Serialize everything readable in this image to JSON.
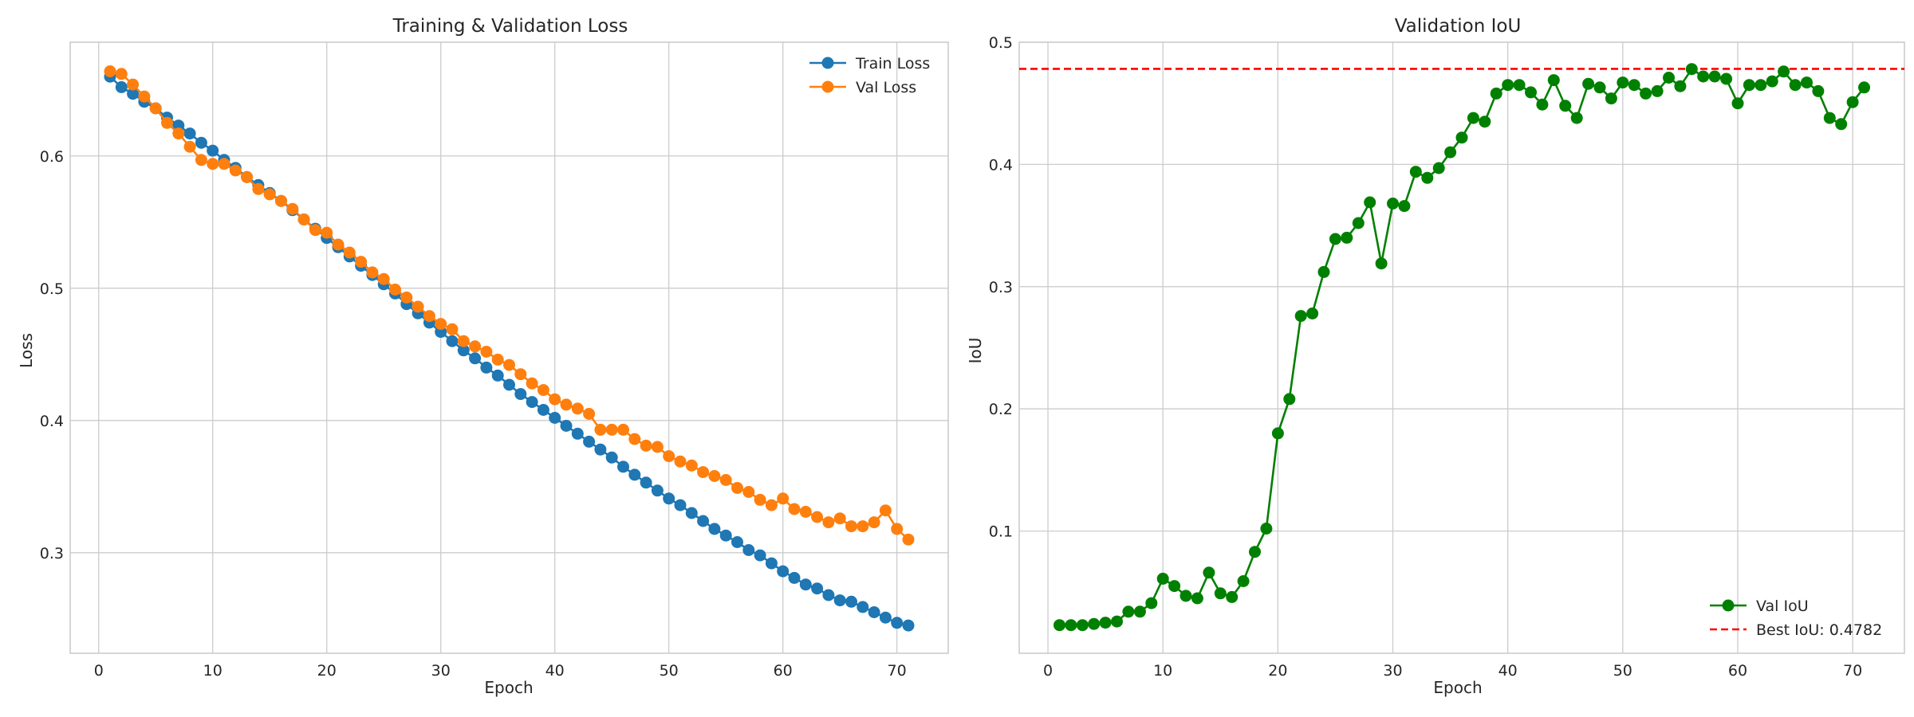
{
  "chart_data": [
    {
      "type": "line",
      "title": "Training & Validation Loss",
      "xlabel": "Epoch",
      "ylabel": "Loss",
      "xlim": [
        -2.5,
        74.5
      ],
      "ylim": [
        0.224,
        0.686
      ],
      "xticks": [
        0,
        10,
        20,
        30,
        40,
        50,
        60,
        70
      ],
      "xtick_labels": [
        "0",
        "10",
        "20",
        "30",
        "40",
        "50",
        "60",
        "70"
      ],
      "yticks": [
        0.3,
        0.4,
        0.5,
        0.6
      ],
      "ytick_labels": [
        "0.3",
        "0.4",
        "0.5",
        "0.6"
      ],
      "grid": true,
      "legend": "top-right",
      "x": [
        1,
        2,
        3,
        4,
        5,
        6,
        7,
        8,
        9,
        10,
        11,
        12,
        13,
        14,
        15,
        16,
        17,
        18,
        19,
        20,
        21,
        22,
        23,
        24,
        25,
        26,
        27,
        28,
        29,
        30,
        31,
        32,
        33,
        34,
        35,
        36,
        37,
        38,
        39,
        40,
        41,
        42,
        43,
        44,
        45,
        46,
        47,
        48,
        49,
        50,
        51,
        52,
        53,
        54,
        55,
        56,
        57,
        58,
        59,
        60,
        61,
        62,
        63,
        64,
        65,
        66,
        67,
        68,
        69,
        70,
        71
      ],
      "series": [
        {
          "name": "Train Loss",
          "color": "#1f77b4",
          "values": [
            0.66,
            0.652,
            0.647,
            0.641,
            0.636,
            0.629,
            0.623,
            0.617,
            0.61,
            0.604,
            0.597,
            0.591,
            0.584,
            0.578,
            0.572,
            0.566,
            0.559,
            0.552,
            0.545,
            0.538,
            0.531,
            0.524,
            0.517,
            0.51,
            0.503,
            0.496,
            0.488,
            0.481,
            0.474,
            0.467,
            0.46,
            0.453,
            0.447,
            0.44,
            0.434,
            0.427,
            0.42,
            0.414,
            0.408,
            0.402,
            0.396,
            0.39,
            0.384,
            0.378,
            0.372,
            0.365,
            0.359,
            0.353,
            0.347,
            0.341,
            0.336,
            0.33,
            0.324,
            0.318,
            0.313,
            0.308,
            0.302,
            0.298,
            0.292,
            0.286,
            0.281,
            0.276,
            0.273,
            0.268,
            0.264,
            0.263,
            0.259,
            0.255,
            0.251,
            0.247,
            0.245
          ]
        },
        {
          "name": "Val Loss",
          "color": "#ff7f0e",
          "values": [
            0.664,
            0.662,
            0.654,
            0.645,
            0.636,
            0.625,
            0.617,
            0.607,
            0.597,
            0.594,
            0.594,
            0.589,
            0.584,
            0.575,
            0.571,
            0.566,
            0.56,
            0.552,
            0.544,
            0.542,
            0.533,
            0.527,
            0.52,
            0.512,
            0.507,
            0.499,
            0.493,
            0.486,
            0.479,
            0.473,
            0.469,
            0.46,
            0.456,
            0.452,
            0.446,
            0.442,
            0.435,
            0.428,
            0.423,
            0.416,
            0.412,
            0.409,
            0.405,
            0.393,
            0.393,
            0.393,
            0.386,
            0.381,
            0.38,
            0.373,
            0.369,
            0.366,
            0.361,
            0.358,
            0.355,
            0.349,
            0.346,
            0.34,
            0.336,
            0.341,
            0.333,
            0.331,
            0.327,
            0.323,
            0.326,
            0.32,
            0.32,
            0.323,
            0.332,
            0.318,
            0.31
          ]
        }
      ]
    },
    {
      "type": "line",
      "title": "Validation IoU",
      "xlabel": "Epoch",
      "ylabel": "IoU",
      "xlim": [
        -2.5,
        74.5
      ],
      "ylim": [
        0.0,
        0.5
      ],
      "xticks": [
        0,
        10,
        20,
        30,
        40,
        50,
        60,
        70
      ],
      "xtick_labels": [
        "0",
        "10",
        "20",
        "30",
        "40",
        "50",
        "60",
        "70"
      ],
      "yticks": [
        0.1,
        0.2,
        0.3,
        0.4,
        0.5
      ],
      "ytick_labels": [
        "0.1",
        "0.2",
        "0.3",
        "0.4",
        "0.5"
      ],
      "grid": true,
      "legend": "bottom-right",
      "x": [
        1,
        2,
        3,
        4,
        5,
        6,
        7,
        8,
        9,
        10,
        11,
        12,
        13,
        14,
        15,
        16,
        17,
        18,
        19,
        20,
        21,
        22,
        23,
        24,
        25,
        26,
        27,
        28,
        29,
        30,
        31,
        32,
        33,
        34,
        35,
        36,
        37,
        38,
        39,
        40,
        41,
        42,
        43,
        44,
        45,
        46,
        47,
        48,
        49,
        50,
        51,
        52,
        53,
        54,
        55,
        56,
        57,
        58,
        59,
        60,
        61,
        62,
        63,
        64,
        65,
        66,
        67,
        68,
        69,
        70,
        71
      ],
      "series": [
        {
          "name": "Val IoU",
          "color": "#008000",
          "values": [
            0.023,
            0.023,
            0.023,
            0.024,
            0.025,
            0.026,
            0.034,
            0.034,
            0.041,
            0.061,
            0.055,
            0.047,
            0.045,
            0.066,
            0.049,
            0.046,
            0.059,
            0.083,
            0.102,
            0.18,
            0.208,
            0.276,
            0.278,
            0.312,
            0.339,
            0.34,
            0.352,
            0.369,
            0.319,
            0.368,
            0.366,
            0.394,
            0.389,
            0.397,
            0.41,
            0.422,
            0.438,
            0.435,
            0.458,
            0.465,
            0.465,
            0.459,
            0.449,
            0.469,
            0.448,
            0.438,
            0.466,
            0.463,
            0.454,
            0.467,
            0.465,
            0.458,
            0.46,
            0.471,
            0.464,
            0.478,
            0.472,
            0.472,
            0.47,
            0.45,
            0.465,
            0.465,
            0.468,
            0.476,
            0.465,
            0.467,
            0.46,
            0.438,
            0.433,
            0.451,
            0.463
          ]
        }
      ],
      "reference_line": {
        "name": "Best IoU: 0.4782",
        "value": 0.4782,
        "color": "#ff0000"
      }
    }
  ]
}
